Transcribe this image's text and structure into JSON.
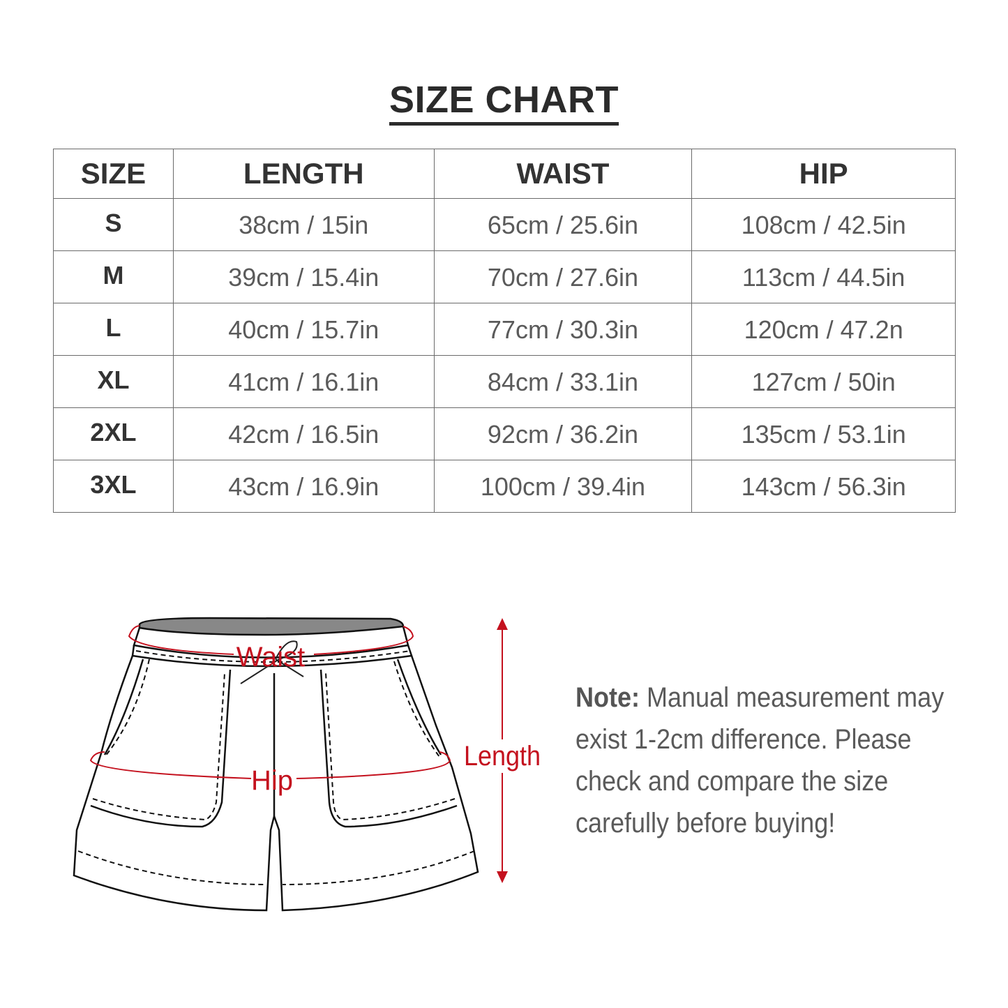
{
  "title": "SIZE CHART",
  "table": {
    "headers": [
      "SIZE",
      "LENGTH",
      "WAIST",
      "HIP"
    ],
    "rows": [
      [
        "S",
        "38cm / 15in",
        "65cm / 25.6in",
        "108cm / 42.5in"
      ],
      [
        "M",
        "39cm / 15.4in",
        "70cm / 27.6in",
        "113cm / 44.5in"
      ],
      [
        "L",
        "40cm / 15.7in",
        "77cm / 30.3in",
        "120cm / 47.2n"
      ],
      [
        "XL",
        "41cm / 16.1in",
        "84cm / 33.1in",
        "127cm / 50in"
      ],
      [
        "2XL",
        "42cm / 16.5in",
        "92cm / 36.2in",
        "135cm / 53.1in"
      ],
      [
        "3XL",
        "43cm / 16.9in",
        "100cm / 39.4in",
        "143cm / 56.3in"
      ]
    ]
  },
  "diagram": {
    "waist_label": "Waist",
    "hip_label": "Hip",
    "length_label": "Length",
    "accent_color": "#c4111e"
  },
  "note": {
    "label": "Note:",
    "text": "Manual measurement may exist 1-2cm difference. Please check and compare the size carefully before buying!"
  }
}
